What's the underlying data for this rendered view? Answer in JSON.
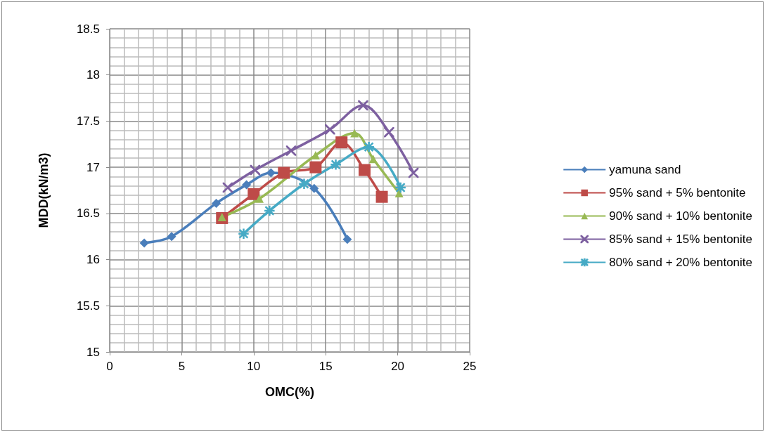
{
  "chart_data": {
    "type": "line",
    "xlabel": "OMC(%)",
    "ylabel": "MDD(kN/m3)",
    "xlim": [
      0,
      25
    ],
    "xticks": [
      0,
      5,
      10,
      15,
      20,
      25
    ],
    "ylim": [
      15,
      18.5
    ],
    "yticks": [
      15,
      15.5,
      16,
      16.5,
      17,
      17.5,
      18,
      18.5
    ],
    "grid": true,
    "legend": "right",
    "series": [
      {
        "name": "yamuna sand",
        "color": "#4a7ebb",
        "marker": "diamond",
        "x": [
          2.4,
          4.3,
          7.4,
          9.5,
          11.2,
          14.2,
          16.5
        ],
        "values": [
          16.18,
          16.25,
          16.61,
          16.81,
          16.94,
          16.77,
          16.22
        ]
      },
      {
        "name": "95% sand + 5% bentonite",
        "color": "#be4b48",
        "marker": "square",
        "x": [
          7.8,
          10,
          12.1,
          14.3,
          16.1,
          17.7,
          18.9
        ],
        "values": [
          16.45,
          16.71,
          16.94,
          17.0,
          17.27,
          16.97,
          16.68
        ]
      },
      {
        "name": "90% sand + 10% bentonite",
        "color": "#98b954",
        "marker": "triangle",
        "x": [
          7.8,
          10.4,
          14.3,
          17,
          18.3,
          20.1
        ],
        "values": [
          16.46,
          16.66,
          17.13,
          17.37,
          17.09,
          16.72
        ]
      },
      {
        "name": "85% sand + 15% bentonite",
        "color": "#7d60a0",
        "marker": "cross",
        "x": [
          8.2,
          10.1,
          12.6,
          15.3,
          17.6,
          19.4,
          21.1
        ],
        "values": [
          16.78,
          16.97,
          17.18,
          17.41,
          17.67,
          17.38,
          16.94
        ]
      },
      {
        "name": "80% sand + 20% bentonite",
        "color": "#46aac5",
        "marker": "star",
        "x": [
          9.3,
          11.1,
          13.5,
          15.7,
          18,
          20.2
        ],
        "values": [
          16.28,
          16.53,
          16.82,
          17.03,
          17.22,
          16.78
        ]
      }
    ]
  }
}
